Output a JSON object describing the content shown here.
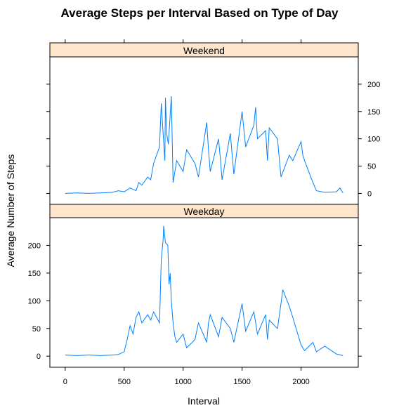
{
  "chart_data": {
    "type": "line",
    "title": "Average Steps per Interval Based on Type of Day",
    "xlabel": "Interval",
    "ylabel": "Average Number of Steps",
    "xlim": [
      -130,
      2485
    ],
    "ylim": [
      -20,
      250
    ],
    "x_ticks": [
      0,
      500,
      1000,
      1500,
      2000
    ],
    "y_ticks": [
      0,
      50,
      100,
      150,
      200
    ],
    "line_color": "#0080ff",
    "strip_color": "#ffe5cc",
    "grid": false,
    "legend": "none",
    "layout": "two stacked panels",
    "panels": [
      {
        "label": "Weekend",
        "x": [
          0,
          100,
          200,
          300,
          400,
          450,
          500,
          550,
          600,
          625,
          650,
          700,
          725,
          750,
          800,
          815,
          830,
          845,
          850,
          860,
          875,
          900,
          915,
          930,
          945,
          1000,
          1030,
          1100,
          1130,
          1200,
          1215,
          1230,
          1300,
          1315,
          1330,
          1400,
          1430,
          1500,
          1530,
          1600,
          1615,
          1630,
          1700,
          1715,
          1730,
          1800,
          1830,
          1900,
          1930,
          2000,
          2015,
          2030,
          2100,
          2130,
          2200,
          2300,
          2330,
          2355
        ],
        "values": [
          0,
          1,
          0,
          1,
          2,
          5,
          3,
          10,
          5,
          20,
          15,
          30,
          25,
          55,
          85,
          165,
          110,
          60,
          175,
          110,
          90,
          178,
          20,
          40,
          60,
          40,
          80,
          55,
          30,
          130,
          80,
          40,
          100,
          65,
          25,
          110,
          35,
          150,
          85,
          125,
          158,
          100,
          115,
          60,
          120,
          100,
          30,
          70,
          60,
          95,
          70,
          60,
          20,
          5,
          2,
          3,
          10,
          1
        ]
      },
      {
        "label": "Weekday",
        "x": [
          0,
          100,
          200,
          300,
          400,
          450,
          500,
          525,
          550,
          575,
          600,
          625,
          650,
          700,
          725,
          750,
          800,
          815,
          830,
          835,
          850,
          870,
          880,
          890,
          900,
          915,
          930,
          945,
          1000,
          1030,
          1100,
          1130,
          1200,
          1215,
          1230,
          1300,
          1330,
          1400,
          1430,
          1500,
          1530,
          1600,
          1630,
          1700,
          1715,
          1730,
          1800,
          1830,
          1845,
          1900,
          1930,
          2000,
          2030,
          2100,
          2130,
          2200,
          2300,
          2355
        ],
        "values": [
          2,
          1,
          2,
          1,
          2,
          3,
          8,
          30,
          55,
          40,
          70,
          80,
          60,
          75,
          65,
          80,
          60,
          175,
          210,
          235,
          205,
          200,
          130,
          150,
          100,
          60,
          35,
          25,
          40,
          15,
          30,
          60,
          25,
          60,
          75,
          35,
          70,
          50,
          25,
          95,
          45,
          80,
          40,
          75,
          30,
          65,
          50,
          95,
          120,
          90,
          70,
          20,
          10,
          25,
          8,
          18,
          4,
          1
        ]
      }
    ]
  }
}
